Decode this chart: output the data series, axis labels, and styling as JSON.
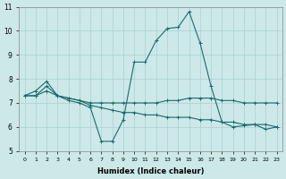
{
  "xlabel": "Humidex (Indice chaleur)",
  "bg_color": "#cce8e8",
  "grid_color": "#aad0d0",
  "line_color": "#1a6b6b",
  "x_min": 0,
  "x_max": 23,
  "y_min": 5,
  "y_max": 11,
  "line_peak": [
    7.3,
    7.5,
    7.9,
    7.3,
    7.1,
    7.0,
    6.8,
    5.4,
    5.4,
    6.3,
    8.7,
    8.7,
    9.6,
    10.1,
    10.15,
    10.8,
    9.5,
    7.7,
    6.2,
    6.0,
    6.05,
    6.1,
    5.9,
    6.0
  ],
  "line_flat1": [
    7.3,
    7.3,
    7.7,
    7.3,
    7.2,
    7.1,
    7.0,
    7.0,
    7.0,
    7.0,
    7.0,
    7.0,
    7.0,
    7.1,
    7.1,
    7.2,
    7.2,
    7.2,
    7.1,
    7.1,
    7.0,
    7.0,
    7.0,
    7.0
  ],
  "line_flat2": [
    7.3,
    7.3,
    7.5,
    7.3,
    7.2,
    7.1,
    6.9,
    6.8,
    6.7,
    6.6,
    6.6,
    6.5,
    6.5,
    6.4,
    6.4,
    6.4,
    6.3,
    6.3,
    6.2,
    6.2,
    6.1,
    6.1,
    6.1,
    6.0
  ],
  "xtick_labels": [
    "0",
    "1",
    "2",
    "3",
    "4",
    "5",
    "6",
    "7",
    "8",
    "9",
    "10",
    "11",
    "12",
    "13",
    "14",
    "15",
    "16",
    "17",
    "18",
    "19",
    "20",
    "21",
    "22",
    "23"
  ],
  "ytick_values": [
    5,
    6,
    7,
    8,
    9,
    10,
    11
  ]
}
